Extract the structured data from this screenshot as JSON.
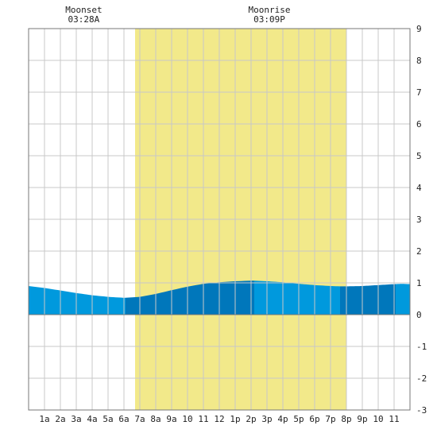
{
  "annotations": {
    "moonset_label": "Moonset",
    "moonset_time": "03:28A",
    "moonrise_label": "Moonrise",
    "moonrise_time": "03:09P"
  },
  "chart_data": {
    "type": "area",
    "title": "",
    "xlabel": "",
    "ylabel": "",
    "xlim": [
      0,
      24
    ],
    "ylim": [
      -3,
      9
    ],
    "grid": true,
    "x_ticks": [
      {
        "x": 1,
        "label": "1a"
      },
      {
        "x": 2,
        "label": "2a"
      },
      {
        "x": 3,
        "label": "3a"
      },
      {
        "x": 4,
        "label": "4a"
      },
      {
        "x": 5,
        "label": "5a"
      },
      {
        "x": 6,
        "label": "6a"
      },
      {
        "x": 7,
        "label": "7a"
      },
      {
        "x": 8,
        "label": "8a"
      },
      {
        "x": 9,
        "label": "9a"
      },
      {
        "x": 10,
        "label": "10"
      },
      {
        "x": 11,
        "label": "11"
      },
      {
        "x": 12,
        "label": "12"
      },
      {
        "x": 13,
        "label": "1p"
      },
      {
        "x": 14,
        "label": "2p"
      },
      {
        "x": 15,
        "label": "3p"
      },
      {
        "x": 16,
        "label": "4p"
      },
      {
        "x": 17,
        "label": "5p"
      },
      {
        "x": 18,
        "label": "6p"
      },
      {
        "x": 19,
        "label": "7p"
      },
      {
        "x": 20,
        "label": "8p"
      },
      {
        "x": 21,
        "label": "9p"
      },
      {
        "x": 22,
        "label": "10"
      },
      {
        "x": 23,
        "label": "11"
      }
    ],
    "y_ticks": [
      {
        "y": 9,
        "label": "9"
      },
      {
        "y": 8,
        "label": "8"
      },
      {
        "y": 7,
        "label": "7"
      },
      {
        "y": 6,
        "label": "6"
      },
      {
        "y": 5,
        "label": "5"
      },
      {
        "y": 4,
        "label": "4"
      },
      {
        "y": 3,
        "label": "3"
      },
      {
        "y": 2,
        "label": "2"
      },
      {
        "y": 1,
        "label": "1"
      },
      {
        "y": 0,
        "label": "0"
      },
      {
        "y": -1,
        "label": "-1"
      },
      {
        "y": -2,
        "label": "-2"
      },
      {
        "y": -3,
        "label": "-3"
      }
    ],
    "daylight": {
      "start": 6.7,
      "end": 20.0
    },
    "moonset_x": 3.47,
    "moonrise_x": 15.15,
    "series": [
      {
        "x": [
          0,
          1,
          2,
          3,
          4,
          5,
          6,
          6.1,
          7,
          8,
          9,
          10,
          11,
          12,
          13,
          14,
          14.2,
          15,
          16,
          17,
          18,
          19,
          19.6,
          20,
          21,
          22,
          23,
          23.5,
          24
        ],
        "y": [
          0.9,
          0.84,
          0.76,
          0.68,
          0.61,
          0.56,
          0.53,
          0.53,
          0.56,
          0.65,
          0.77,
          0.88,
          0.97,
          1.02,
          1.05,
          1.07,
          1.07,
          1.05,
          1.02,
          0.97,
          0.93,
          0.9,
          0.89,
          0.89,
          0.9,
          0.93,
          0.96,
          0.97,
          0.96
        ]
      }
    ],
    "bands": [
      {
        "start": 0,
        "end": 6.1,
        "shade": "light"
      },
      {
        "start": 6.1,
        "end": 14.2,
        "shade": "dark"
      },
      {
        "start": 14.2,
        "end": 19.6,
        "shade": "light"
      },
      {
        "start": 19.6,
        "end": 23.1,
        "shade": "dark"
      },
      {
        "start": 23.1,
        "end": 24,
        "shade": "light"
      }
    ],
    "colors": {
      "daylight": "#f2e98a",
      "water_light": "#0099dd",
      "water_dark": "#0077bb",
      "grid": "#c8c8c8",
      "axis": "#777777"
    }
  }
}
